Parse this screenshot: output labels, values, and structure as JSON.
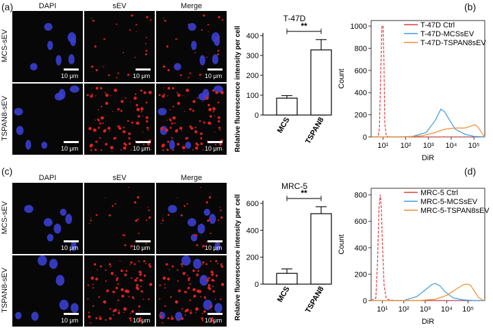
{
  "panels": {
    "a": "(a)",
    "b": "(b)",
    "c": "(c)",
    "d": "(d)"
  },
  "micrographs": {
    "columns": [
      "DAPI",
      "sEV",
      "Merge"
    ],
    "rows_top": [
      "MCS-sEV",
      "TSPAN8-sEV"
    ],
    "rows_bottom": [
      "MCS-sEV",
      "TSPAN8-sEV"
    ],
    "scale_label": "10 μm",
    "colors": {
      "nucleus": "#3a3fd0",
      "sev": "#e02020",
      "background": "#070707"
    }
  },
  "chart_data": [
    {
      "id": "bar-t47d",
      "type": "bar",
      "title": "T-47D",
      "ylabel": "Relative fluorescence intensity per cell",
      "categories": [
        "MCS",
        "TSPAN8"
      ],
      "values": [
        85,
        328
      ],
      "errors": [
        13,
        52
      ],
      "ylim": [
        0,
        400
      ],
      "yticks": [
        0,
        100,
        200,
        300,
        400
      ],
      "significance": "**"
    },
    {
      "id": "flow-t47d",
      "type": "line",
      "xlabel": "DiR",
      "ylabel": "Count",
      "xscale": "log",
      "xlim": [
        3,
        300000
      ],
      "xticks": [
        "10¹",
        "10²",
        "10³",
        "10⁴",
        "10⁵"
      ],
      "ylim": [
        0,
        1050
      ],
      "yticks": [
        0,
        200,
        400,
        600,
        800,
        1000
      ],
      "legend_position": "top-right",
      "series": [
        {
          "name": "T-47D Ctrl",
          "color": "#e03c3c",
          "dashed": true,
          "x": [
            3,
            6,
            7,
            8,
            9,
            10,
            11,
            12,
            14,
            18,
            30,
            300000
          ],
          "y": [
            0,
            2,
            80,
            600,
            1000,
            1005,
            700,
            120,
            10,
            0,
            0,
            0
          ]
        },
        {
          "name": "T-47D-MCSsEV",
          "color": "#3a9ad9",
          "dashed": false,
          "x": [
            3,
            50,
            200,
            800,
            2000,
            3500,
            5000,
            8000,
            15000,
            40000,
            100000,
            300000
          ],
          "y": [
            0,
            0,
            5,
            40,
            150,
            250,
            230,
            160,
            70,
            25,
            5,
            0
          ]
        },
        {
          "name": "T-47D-TSPAN8sEV",
          "color": "#ef8b2c",
          "dashed": false,
          "x": [
            3,
            100,
            500,
            2000,
            5000,
            15000,
            40000,
            80000,
            110000,
            150000,
            250000,
            300000
          ],
          "y": [
            0,
            0,
            10,
            40,
            70,
            80,
            80,
            100,
            110,
            90,
            20,
            0
          ]
        }
      ]
    },
    {
      "id": "bar-mrc5",
      "type": "bar",
      "title": "MRC-5",
      "ylabel": "Relative fluorescence intensity per cell",
      "categories": [
        "MCS",
        "TSPAN8"
      ],
      "values": [
        80,
        523
      ],
      "errors": [
        33,
        52
      ],
      "ylim": [
        0,
        600
      ],
      "yticks": [
        0,
        200,
        400,
        600
      ],
      "significance": "**"
    },
    {
      "id": "flow-mrc5",
      "type": "line",
      "xlabel": "DiR",
      "ylabel": "Count",
      "xscale": "log",
      "xlim": [
        3,
        600000
      ],
      "xticks": [
        "10¹",
        "10²",
        "10³",
        "10⁴",
        "10⁵"
      ],
      "ylim": [
        0,
        850
      ],
      "yticks": [
        0,
        200,
        400,
        600,
        800
      ],
      "legend_position": "top-right",
      "series": [
        {
          "name": "MRC-5 Ctrl",
          "color": "#e03c3c",
          "dashed": true,
          "x": [
            3,
            5,
            6,
            7,
            8,
            9,
            10,
            12,
            15,
            20,
            40,
            600000
          ],
          "y": [
            0,
            20,
            300,
            700,
            800,
            700,
            450,
            120,
            20,
            5,
            0,
            0
          ]
        },
        {
          "name": "MRC-5-MCSsEV",
          "color": "#3a9ad9",
          "dashed": false,
          "x": [
            3,
            100,
            400,
            1000,
            2000,
            3000,
            5000,
            8000,
            20000,
            60000,
            200000,
            600000
          ],
          "y": [
            0,
            0,
            30,
            80,
            120,
            130,
            110,
            70,
            20,
            5,
            0,
            0
          ]
        },
        {
          "name": "MRC-5-TSPAN8sEV",
          "color": "#ef8b2c",
          "dashed": false,
          "x": [
            3,
            500,
            3000,
            10000,
            30000,
            60000,
            90000,
            130000,
            200000,
            300000,
            450000,
            600000
          ],
          "y": [
            0,
            0,
            10,
            40,
            90,
            120,
            125,
            115,
            70,
            25,
            5,
            0
          ]
        }
      ]
    }
  ]
}
